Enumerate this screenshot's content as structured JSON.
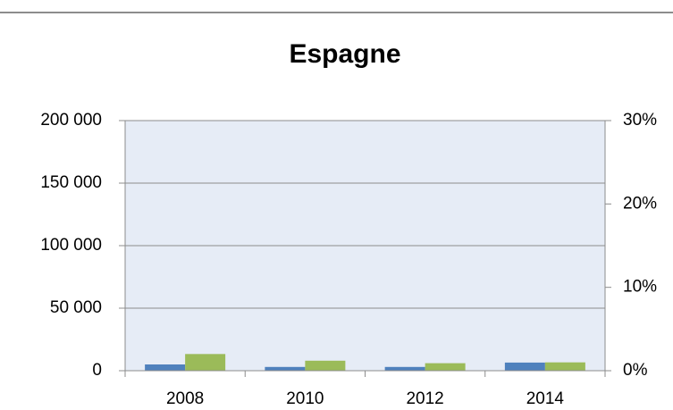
{
  "chart_data": {
    "type": "bar",
    "title": "Espagne",
    "categories": [
      "2008",
      "2010",
      "2012",
      "2014"
    ],
    "series": [
      {
        "color": "#4f81bd",
        "values": [
          5000,
          3000,
          3000,
          6500
        ]
      },
      {
        "color": "#9bbb59",
        "axis": "y2",
        "values": [
          2.0,
          1.2,
          0.9,
          1.0
        ]
      }
    ],
    "ylim": [
      0,
      200000
    ],
    "yticks": [
      0,
      {
        "value": 50000,
        "label": "50 000"
      },
      {
        "value": 100000,
        "label": "100 000"
      },
      {
        "value": 150000,
        "label": "150 000"
      },
      {
        "value": 200000,
        "label": "200 000"
      }
    ],
    "y2lim": [
      0,
      30
    ],
    "y2ticks": [
      {
        "value": 0,
        "label": "0%"
      },
      {
        "value": 10,
        "label": "10%"
      },
      {
        "value": 20,
        "label": "20%"
      },
      {
        "value": 30,
        "label": "30%"
      }
    ],
    "grid": true
  }
}
